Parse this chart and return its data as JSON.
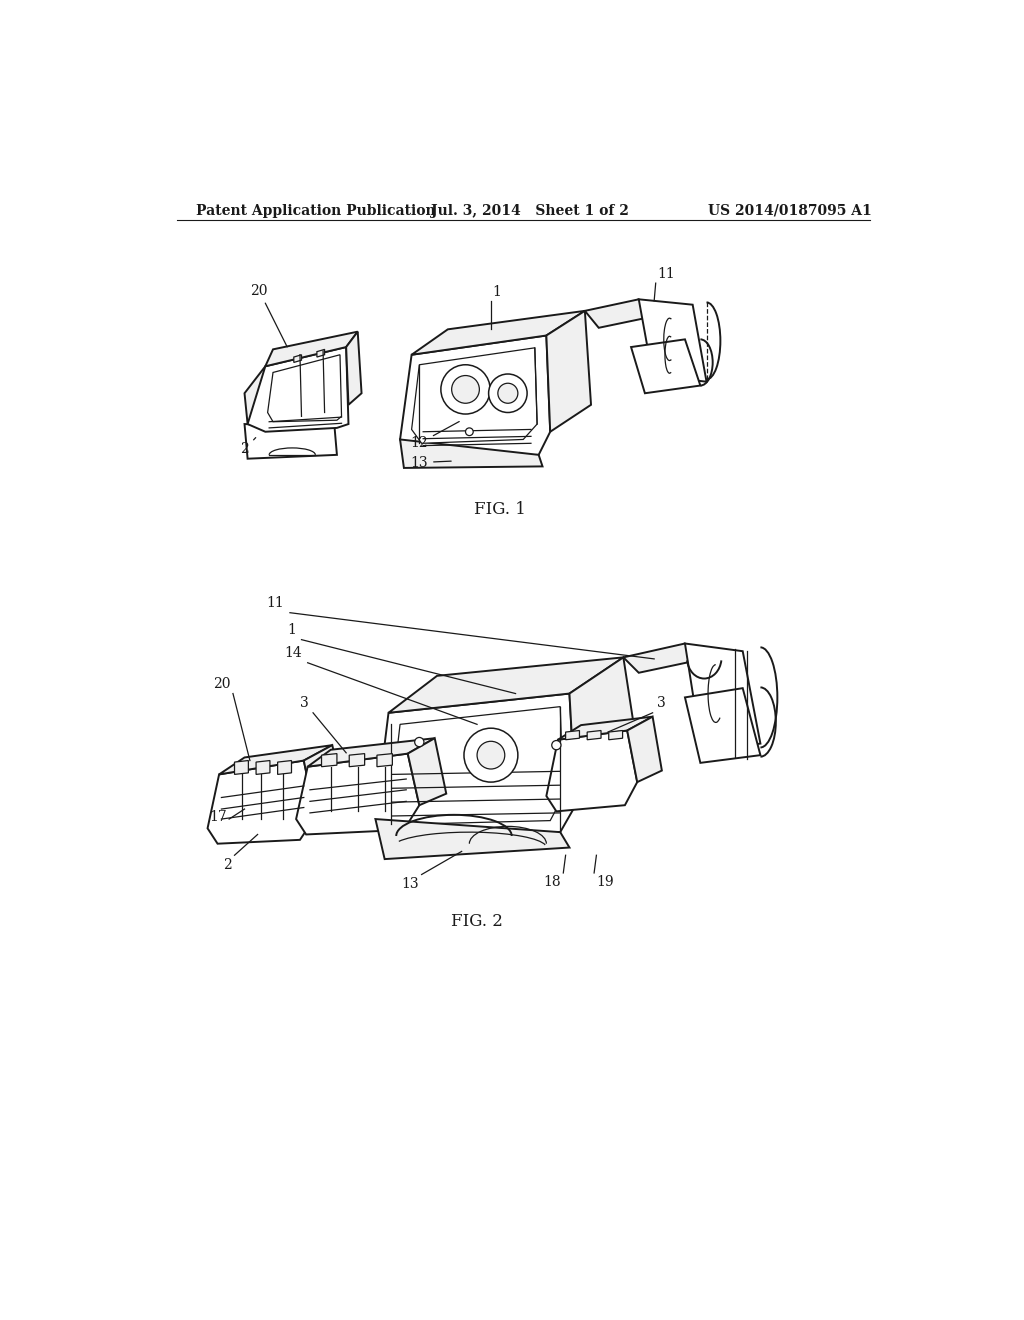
{
  "background_color": "#ffffff",
  "header_left": "Patent Application Publication",
  "header_center": "Jul. 3, 2014   Sheet 1 of 2",
  "header_right": "US 2014/0187095 A1",
  "fig1_label": "FIG. 1",
  "fig2_label": "FIG. 2",
  "header_font_size": 10,
  "fig_label_font_size": 12,
  "line_color": "#1a1a1a",
  "fill_white": "#ffffff",
  "fill_light": "#f0f0f0",
  "fill_dark": "#cccccc"
}
